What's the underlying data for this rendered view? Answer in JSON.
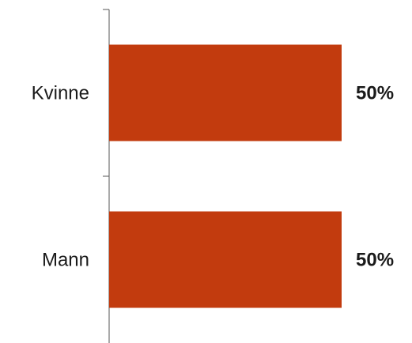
{
  "chart_data": {
    "type": "bar",
    "orientation": "horizontal",
    "categories": [
      "Kvinne",
      "Mann"
    ],
    "values": [
      50,
      50
    ],
    "value_labels": [
      "50%",
      "50%"
    ],
    "xlim": [
      0,
      50
    ],
    "grid": false,
    "legend": "none",
    "bar_color": "#C23B0E",
    "axis_color": "#555555"
  }
}
